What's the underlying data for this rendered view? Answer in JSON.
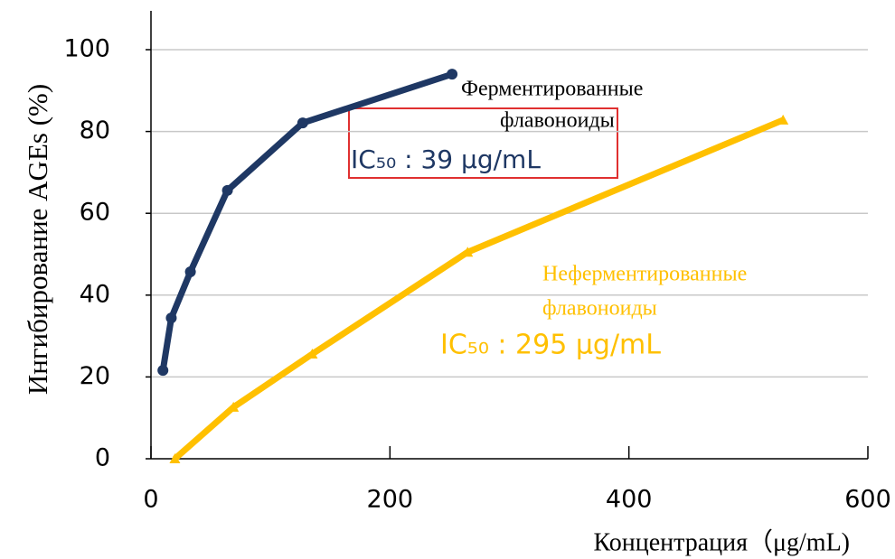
{
  "chart_data": {
    "type": "line",
    "ylabel": "Ингибирование AGEs (%)",
    "xlabel": "Концентрация（μg/mL)",
    "xlim": [
      0,
      600
    ],
    "xticks": [
      0,
      200,
      400,
      600
    ],
    "ylim": [
      0,
      100
    ],
    "yticks": [
      0,
      20,
      40,
      60,
      80,
      100
    ],
    "grid": true,
    "series": [
      {
        "name": "Ферментированные флавоноиды",
        "color": "#1f3864",
        "marker": "circle",
        "x": [
          10,
          17,
          33,
          64,
          127,
          252
        ],
        "values": [
          21.6,
          34.4,
          45.7,
          65.6,
          82.1,
          94
        ]
      },
      {
        "name": "Неферментированные флавоноиды",
        "color": "#ffc000",
        "marker": "triangle",
        "x": [
          20,
          69,
          135,
          265,
          529
        ],
        "values": [
          0,
          12.6,
          25.6,
          50.5,
          82.8
        ]
      }
    ],
    "annotations": [
      "Ферментированные",
      "флавоноиды",
      "IC₅₀ : 39 μg/mL",
      "Неферментированные",
      "флавоноиды",
      "IC₅₀ : 295 μg/mL"
    ]
  }
}
